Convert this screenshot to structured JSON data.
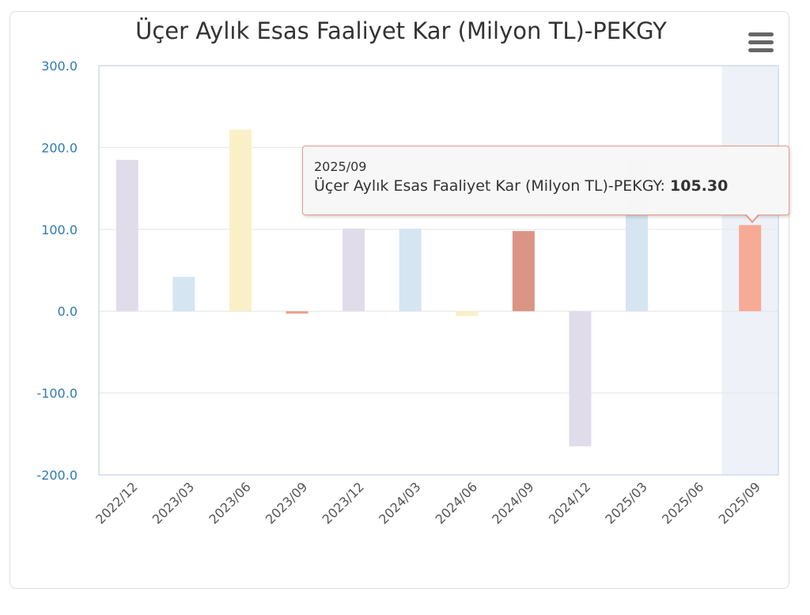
{
  "chart_data": {
    "type": "bar",
    "title": "Üçer Aylık Esas Faaliyet Kar (Milyon TL)-PEKGY",
    "categories": [
      "2022/12",
      "2023/03",
      "2023/06",
      "2023/09",
      "2023/12",
      "2024/03",
      "2024/06",
      "2024/09",
      "2024/12",
      "2025/03",
      "2025/06",
      "2025/09"
    ],
    "values": [
      185,
      42,
      222,
      -3,
      101,
      101,
      -6,
      98,
      -165,
      186,
      null,
      105.3
    ],
    "bar_colors": [
      "#e0dcea",
      "#d5e5f2",
      "#faf0c8",
      "#e8a090",
      "#e0dcea",
      "#d5e5f2",
      "#faf0c8",
      "#db9585",
      "#e0dcea",
      "#d5e5f2",
      "#faf0c8",
      "#f7aa95"
    ],
    "ylim": [
      -200,
      300
    ],
    "yticks": [
      300,
      200,
      100,
      0,
      -100,
      -200
    ],
    "ytick_labels": [
      "300.0",
      "200.0",
      "100.0",
      "0.0",
      "-100.0",
      "-200.0"
    ],
    "xlabel": "",
    "ylabel": "",
    "grid": true,
    "highlighted_index": 11,
    "axis_label_color": "#2f7bb3"
  },
  "tooltip": {
    "header": "2025/09",
    "series_label": "Üçer Aylık Esas Faaliyet Kar (Milyon TL)-PEKGY: ",
    "value": "105.30"
  },
  "menu": {
    "icon": "hamburger-menu-icon"
  }
}
